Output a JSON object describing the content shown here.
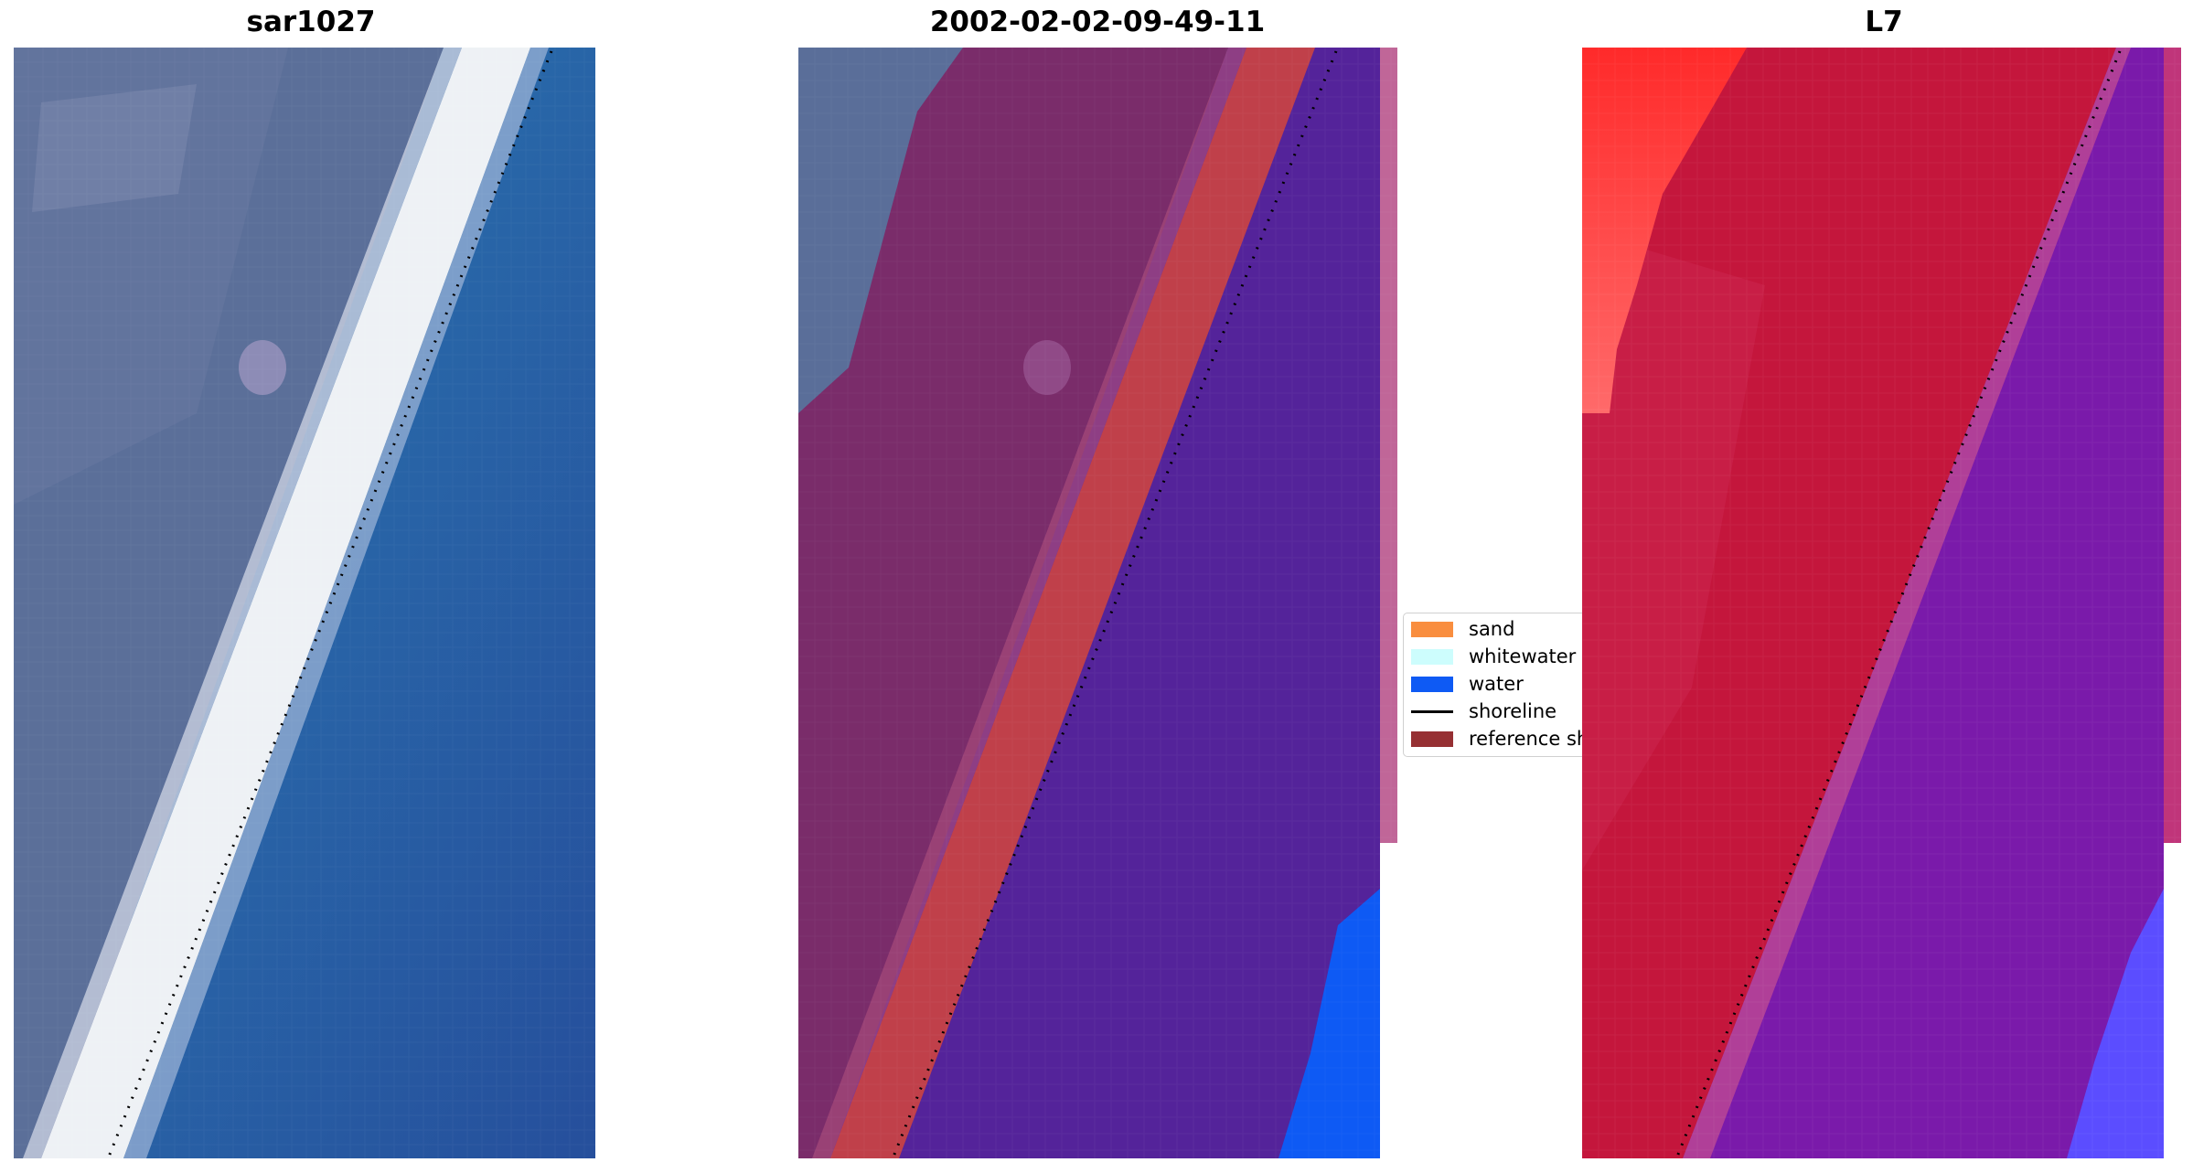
{
  "panels": [
    {
      "id": "rgb",
      "title": "sar1027"
    },
    {
      "id": "classified",
      "title": "2002-02-02-09-49-11"
    },
    {
      "id": "index",
      "title": "L7"
    }
  ],
  "legend": {
    "items": [
      {
        "label": "sand",
        "color": "#f98e3f",
        "kind": "patch"
      },
      {
        "label": "whitewater",
        "color": "#cdfdfd",
        "kind": "patch"
      },
      {
        "label": "water",
        "color": "#0e5af4",
        "kind": "patch"
      },
      {
        "label": "shoreline",
        "color": "#000000",
        "kind": "line"
      },
      {
        "label": "reference shoreline buffer",
        "color": "#963033",
        "kind": "patch"
      }
    ]
  },
  "colors": {
    "land_rgb": "#5b6f99",
    "surf_white": "#eef1f5",
    "sea_blue": "#2b6aa7",
    "land_classified": "#7a2c6a",
    "buffer_red": "#c0404a",
    "water_purple": "#54239a",
    "water_blue": "#0e5af4",
    "index_red": "#c4163c",
    "index_bright_red": "#ff2a2a",
    "index_purple": "#7a1aaa",
    "index_blue": "#5b4dff"
  }
}
